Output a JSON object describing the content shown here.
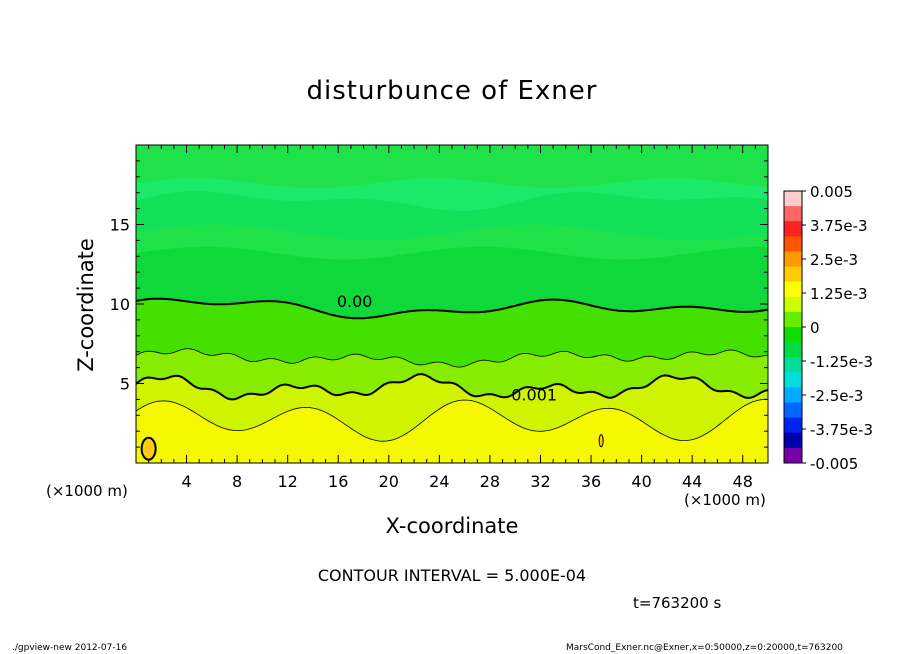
{
  "chart_data": {
    "type": "heatmap",
    "title": "disturbunce of Exner",
    "xlabel": "X-coordinate",
    "ylabel": "Z-coordinate",
    "x_unit_label": "(×1000 m)",
    "xlim": [
      0,
      50
    ],
    "ylim": [
      0,
      20
    ],
    "x_ticks": [
      4,
      8,
      12,
      16,
      20,
      24,
      28,
      32,
      36,
      40,
      44,
      48
    ],
    "y_ticks": [
      5,
      10,
      15
    ],
    "contour_interval_label": "CONTOUR INTERVAL = 5.000E-04",
    "contour_labels": [
      {
        "text": "0.00",
        "x": 17.3,
        "z": 10.2
      },
      {
        "text": "0.001",
        "x": 31.5,
        "z": 4.3
      }
    ],
    "colorbar": {
      "labels": [
        "0.005",
        "3.75e-3",
        "2.5e-3",
        "1.25e-3",
        "0",
        "-1.25e-3",
        "-2.5e-3",
        "-3.75e-3",
        "-0.005"
      ],
      "colors": [
        "#ffcccc",
        "#ff6666",
        "#ff2222",
        "#ff5500",
        "#ff9900",
        "#ffcc00",
        "#ffff00",
        "#ccff00",
        "#66ee00",
        "#11dd00",
        "#00dd44",
        "#00dd99",
        "#00dddd",
        "#00aaff",
        "#0066ff",
        "#0022ee",
        "#0000aa",
        "#7700aa"
      ]
    }
  },
  "time_label": "t=763200 s",
  "footer": {
    "left": "./gpview-new   2012-07-16",
    "right": "MarsCond_Exner.nc@Exner,x=0:50000,z=0:20000,t=763200"
  }
}
